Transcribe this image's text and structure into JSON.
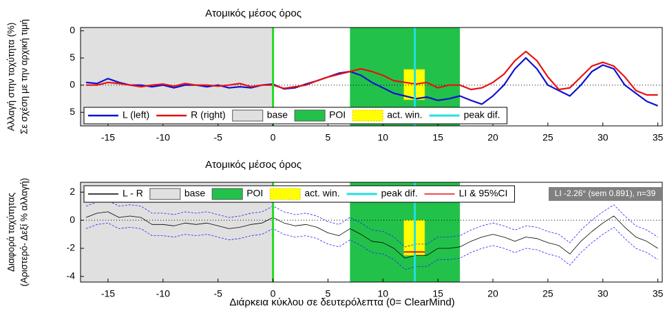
{
  "chart_data": [
    {
      "type": "line",
      "title": "Ατομικός μέσος όρος",
      "ylabel": [
        "Αλλαγή στην ταχύτητα (%)",
        "Σε σχέση με την αρχική τιμή"
      ],
      "x": [
        -17,
        -16,
        -15,
        -14,
        -13,
        -12,
        -11,
        -10,
        -9,
        -8,
        -7,
        -6,
        -5,
        -4,
        -3,
        -2,
        -1,
        0,
        1,
        2,
        3,
        4,
        5,
        6,
        7,
        8,
        9,
        10,
        11,
        12,
        13,
        14,
        15,
        16,
        17,
        18,
        19,
        20,
        21,
        22,
        23,
        24,
        25,
        26,
        27,
        28,
        29,
        30,
        31,
        32,
        33,
        34,
        35
      ],
      "series": [
        {
          "name": "L (left)",
          "color": "#1010d0",
          "values": [
            0.5,
            0.3,
            1.2,
            0.5,
            0,
            0,
            -0.3,
            0,
            -0.5,
            0,
            0,
            -0.3,
            0,
            -0.5,
            -0.3,
            -0.5,
            0,
            0.2,
            -0.7,
            -0.5,
            0.2,
            0.8,
            1.5,
            2.2,
            2.5,
            1.8,
            0.5,
            -0.5,
            -1.5,
            -2,
            -2.5,
            -2.2,
            -2.8,
            -2.5,
            -2,
            -2.8,
            -3.5,
            -2,
            0,
            3,
            5,
            3,
            0,
            -1,
            -2,
            0,
            2.5,
            3.7,
            3,
            0,
            -1.5,
            -3,
            -3.8
          ]
        },
        {
          "name": "R (right)",
          "color": "#e81010",
          "values": [
            0,
            0,
            0.5,
            0.3,
            0,
            -0.3,
            0,
            0.2,
            -0.2,
            0.3,
            0,
            0,
            -0.2,
            0,
            0.3,
            -0.3,
            0,
            0,
            -0.6,
            -0.3,
            0,
            0.8,
            1.5,
            2,
            2.5,
            3,
            2.5,
            1.8,
            0.8,
            0.5,
            0.2,
            0.5,
            -0.5,
            0,
            0,
            -0.8,
            -0.5,
            0.5,
            2,
            4.5,
            6.2,
            4.5,
            1.5,
            -0.8,
            -0.5,
            1.5,
            3.5,
            4.2,
            3.5,
            1.5,
            -1,
            -1.8,
            -1.8
          ]
        }
      ],
      "spans": [
        {
          "name": "base",
          "color": "#e0e0e0",
          "x": [
            -17.5,
            0
          ]
        },
        {
          "name": "POI",
          "color": "#22c24a",
          "x": [
            7,
            17
          ]
        },
        {
          "name": "act. win.",
          "color": "#ffff00",
          "x": [
            11.9,
            13.8
          ],
          "y": [
            -2.7,
            2.9
          ]
        }
      ],
      "vlines": [
        {
          "x": 0,
          "color": "#22dd22"
        },
        {
          "name": "peak dif.",
          "x": 12.9,
          "color": "#22e0e0"
        }
      ],
      "xlim": [
        -17.5,
        35.4
      ],
      "ylim": [
        -7.5,
        10.6
      ],
      "xticks": [
        -15,
        -10,
        -5,
        0,
        5,
        10,
        15,
        20,
        25,
        30,
        35
      ],
      "yticks": [
        {
          "value": 10,
          "label": "0"
        },
        5,
        0,
        {
          "value": -5,
          "label": "5"
        }
      ]
    },
    {
      "type": "line",
      "title": "Ατομικός μέσος όρος",
      "ylabel": [
        "Διαφορά ταχύτητας",
        "(Αριστερό- Δεξί % αλλαγή)"
      ],
      "xlabel": "Διάρκεια κύκλου σε δευτερόλεπτα  (0= ClearMind)",
      "x": [
        -17,
        -16,
        -15,
        -14,
        -13,
        -12,
        -11,
        -10,
        -9,
        -8,
        -7,
        -6,
        -5,
        -4,
        -3,
        -2,
        -1,
        0,
        1,
        2,
        3,
        4,
        5,
        6,
        7,
        8,
        9,
        10,
        11,
        12,
        13,
        14,
        15,
        16,
        17,
        18,
        19,
        20,
        21,
        22,
        23,
        24,
        25,
        26,
        27,
        28,
        29,
        30,
        31,
        32,
        33,
        34,
        35
      ],
      "series": [
        {
          "name": "L - R",
          "color": "#000000",
          "values": [
            0.2,
            0.5,
            0.6,
            0.2,
            0.3,
            0.2,
            -0.3,
            -0.3,
            -0.4,
            -0.2,
            -0.3,
            -0.2,
            -0.4,
            -0.6,
            -0.5,
            -0.3,
            -0.2,
            0.2,
            -0.2,
            -0.4,
            -0.3,
            -0.5,
            -0.9,
            -1.1,
            -0.6,
            -1,
            -1.5,
            -1.6,
            -2,
            -2.7,
            -2.5,
            -2.5,
            -2,
            -2,
            -1.9,
            -1.5,
            -1.2,
            -1,
            -1.2,
            -1.5,
            -1.2,
            -1.3,
            -1.6,
            -1.8,
            -2.4,
            -1.5,
            -0.8,
            -0.2,
            0.3,
            -0.5,
            -1.2,
            -1.5,
            -2
          ]
        }
      ],
      "ci": {
        "color": "#2020ff",
        "upper": [
          1,
          1.3,
          1.4,
          1,
          1.1,
          1,
          0.5,
          0.5,
          0.4,
          0.6,
          0.5,
          0.6,
          0.4,
          0.2,
          0.3,
          0.5,
          0.6,
          1,
          0.6,
          0.4,
          0.5,
          0.3,
          -0.1,
          -0.3,
          0.2,
          -0.2,
          -0.7,
          -0.8,
          -1.2,
          -1.9,
          -1.7,
          -1.7,
          -1.2,
          -1.2,
          -1.1,
          -0.7,
          -0.4,
          -0.2,
          -0.4,
          -0.7,
          -0.4,
          -0.5,
          -0.8,
          -1,
          -1.6,
          -0.7,
          0,
          0.6,
          1.1,
          0.3,
          -0.4,
          -0.7,
          -1.2
        ],
        "lower": [
          -0.6,
          -0.3,
          -0.2,
          -0.6,
          -0.5,
          -0.6,
          -1.1,
          -1.1,
          -1.2,
          -1,
          -1.1,
          -1,
          -1.2,
          -1.4,
          -1.3,
          -1.1,
          -1,
          -0.6,
          -1,
          -1.2,
          -1.1,
          -1.3,
          -1.7,
          -1.9,
          -1.4,
          -1.8,
          -2.3,
          -2.4,
          -2.8,
          -3.5,
          -3.3,
          -3.3,
          -2.8,
          -2.8,
          -2.7,
          -2.3,
          -2,
          -1.8,
          -2,
          -2.3,
          -2,
          -2.1,
          -2.4,
          -2.6,
          -3.2,
          -2.3,
          -1.6,
          -1,
          -0.5,
          -1.3,
          -2,
          -2.3,
          -2.8
        ]
      },
      "spans": [
        {
          "name": "base",
          "color": "#e0e0e0",
          "x": [
            -17.5,
            0
          ]
        },
        {
          "name": "POI",
          "color": "#22c24a",
          "x": [
            7,
            17
          ]
        },
        {
          "name": "act. win.",
          "color": "#ffff00",
          "x": [
            11.9,
            13.8
          ],
          "y": [
            -2.5,
            0
          ]
        }
      ],
      "vlines": [
        {
          "x": 0,
          "color": "#22dd22"
        },
        {
          "name": "peak dif.",
          "x": 12.9,
          "color": "#22e0e0"
        }
      ],
      "li": {
        "name": "LI & 95%CI",
        "color": "#e81010",
        "value": -2.26,
        "x": [
          11.9,
          13.8
        ]
      },
      "annotation": "LI -2.26° (sem 0.891), n=39",
      "xlim": [
        -17.5,
        35.4
      ],
      "ylim": [
        -4.4,
        2.7
      ],
      "xticks": [
        -15,
        -10,
        -5,
        0,
        5,
        10,
        15,
        20,
        25,
        30,
        35
      ],
      "yticks": [
        2,
        0,
        -2,
        -4
      ]
    }
  ]
}
